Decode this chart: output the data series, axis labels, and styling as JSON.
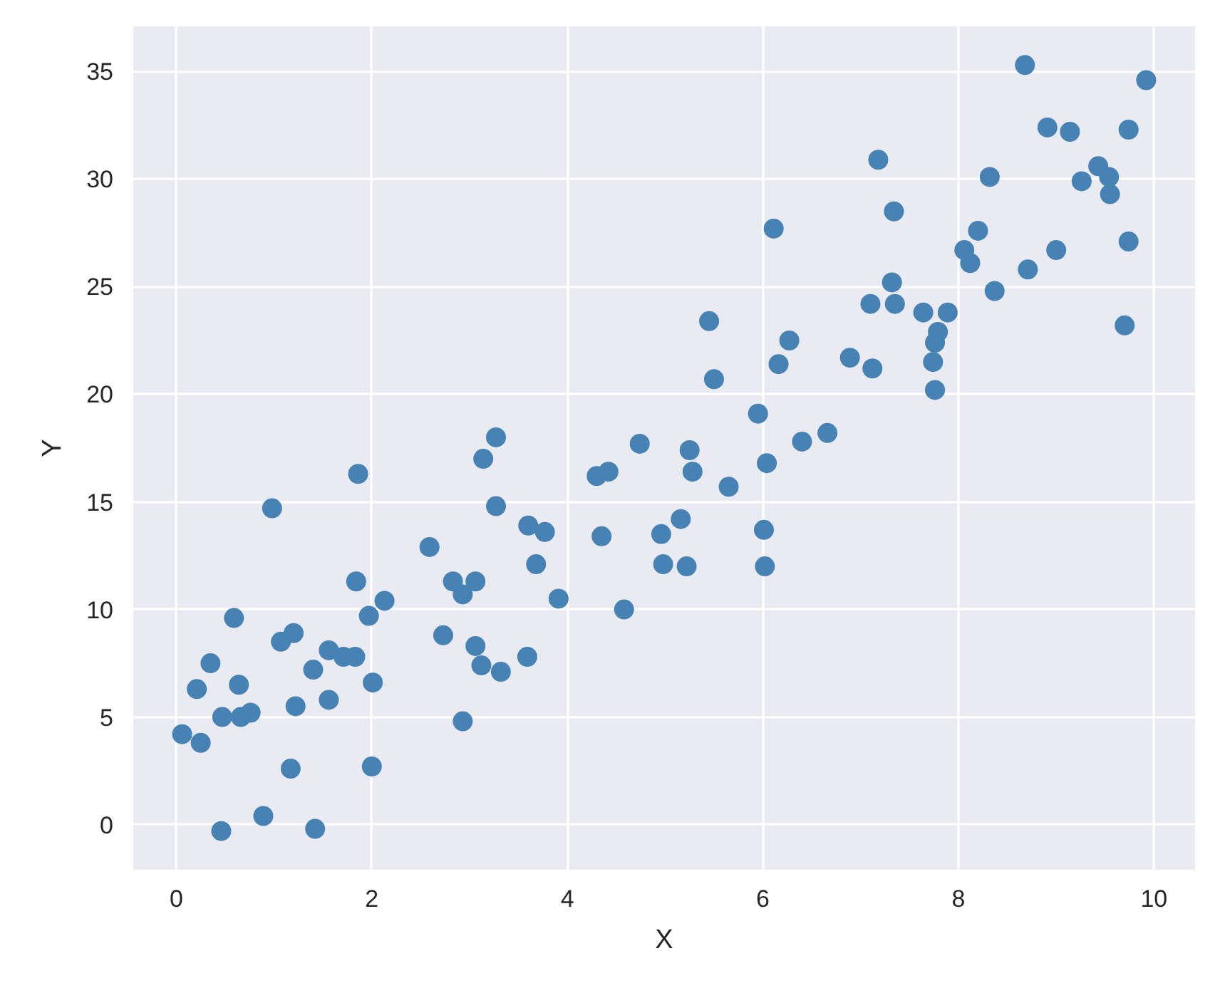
{
  "chart_data": {
    "type": "scatter",
    "xlabel": "X",
    "ylabel": "Y",
    "marker": "circle",
    "grid": true,
    "xlim": [
      -0.44,
      10.42
    ],
    "ylim": [
      -2.1,
      37.1
    ],
    "xticks": [
      0,
      2,
      4,
      6,
      8,
      10
    ],
    "yticks": [
      0,
      5,
      10,
      15,
      20,
      25,
      30,
      35
    ],
    "series": [
      {
        "color": "#4682b4",
        "x": [
          1.86,
          0.98,
          1.84,
          2.13,
          1.97,
          0.59,
          1.2,
          1.07,
          1.56,
          1.71,
          1.83,
          0.35,
          1.4,
          2.01,
          0.21,
          0.64,
          1.22,
          1.56,
          0.47,
          0.66,
          0.76,
          0.06,
          0.25,
          1.17,
          2.0,
          0.89,
          0.46,
          1.42,
          3.27,
          3.14,
          4.74,
          4.3,
          4.42,
          3.27,
          3.6,
          3.77,
          2.59,
          4.35,
          4.96,
          4.98,
          3.68,
          2.83,
          3.06,
          2.93,
          3.91,
          4.58,
          2.73,
          3.06,
          3.12,
          3.32,
          3.59,
          2.93,
          5.16,
          6.11,
          5.45,
          7.1,
          6.27,
          6.16,
          6.89,
          7.12,
          5.5,
          5.95,
          6.66,
          6.4,
          5.25,
          5.28,
          6.04,
          5.65,
          6.01,
          5.22,
          6.02,
          7.18,
          8.32,
          9.43,
          9.54,
          9.26,
          9.55,
          7.34,
          8.2,
          8.06,
          8.12,
          9.0,
          9.74,
          8.71,
          8.37,
          7.32,
          7.35,
          7.64,
          7.89,
          7.79,
          7.76,
          7.74,
          7.76,
          9.7,
          8.68,
          9.92,
          8.91,
          9.14,
          9.74
        ],
        "values": [
          16.3,
          14.7,
          11.3,
          10.4,
          9.7,
          9.6,
          8.9,
          8.5,
          8.1,
          7.8,
          7.8,
          7.5,
          7.2,
          6.6,
          6.3,
          6.5,
          5.5,
          5.8,
          5.0,
          5.0,
          5.2,
          4.2,
          3.8,
          2.6,
          2.7,
          0.4,
          -0.3,
          -0.2,
          18.0,
          17.0,
          17.7,
          16.2,
          16.4,
          14.8,
          13.9,
          13.6,
          12.9,
          13.4,
          13.5,
          12.1,
          12.1,
          11.3,
          11.3,
          10.7,
          10.5,
          10.0,
          8.8,
          8.3,
          7.4,
          7.1,
          7.8,
          4.8,
          14.2,
          27.7,
          23.4,
          24.2,
          22.5,
          21.4,
          21.7,
          21.2,
          20.7,
          19.1,
          18.2,
          17.8,
          17.4,
          16.4,
          16.8,
          15.7,
          13.7,
          12.0,
          12.0,
          30.9,
          30.1,
          30.6,
          30.1,
          29.9,
          29.3,
          28.5,
          27.6,
          26.7,
          26.1,
          26.7,
          27.1,
          25.8,
          24.8,
          25.2,
          24.2,
          23.8,
          23.8,
          22.9,
          22.4,
          21.5,
          20.2,
          23.2,
          35.3,
          34.6,
          32.4,
          32.2,
          32.3
        ]
      }
    ]
  }
}
